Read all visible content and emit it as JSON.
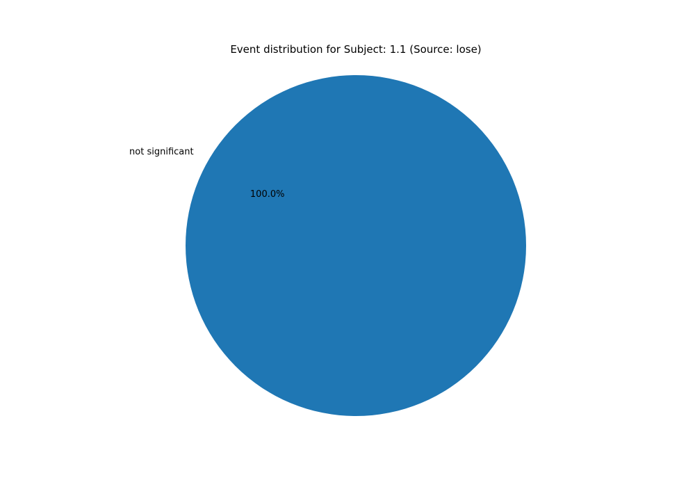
{
  "chart_data": {
    "type": "pie",
    "title": "Event distribution for Subject: 1.1 (Source: lose)",
    "slices": [
      {
        "label": "not significant",
        "value": 100,
        "percent_label": "100.0%",
        "color": "#1f77b4"
      }
    ]
  }
}
